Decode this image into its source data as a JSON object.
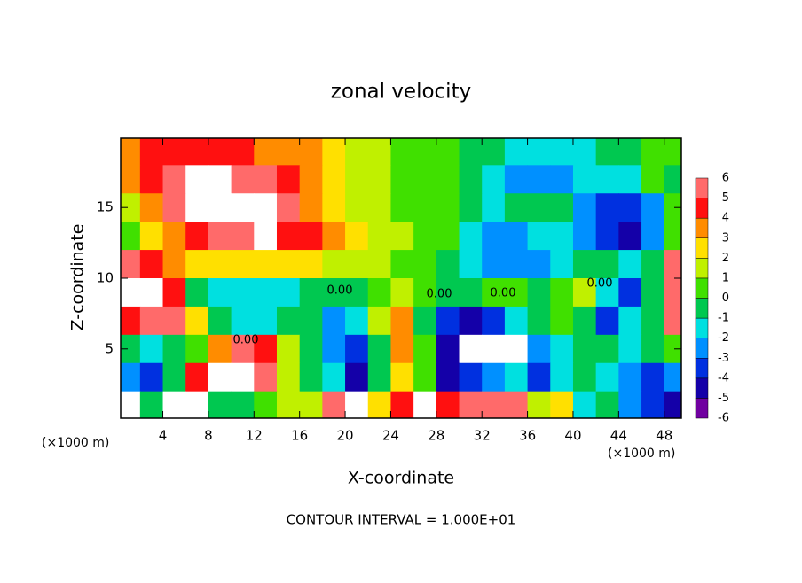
{
  "chart_data": {
    "type": "heatmap",
    "title": "zonal velocity",
    "x_label": "X-coordinate",
    "y_label": "Z-coordinate",
    "x_unit": "(×1000 m)",
    "y_unit": "(×1000 m)",
    "footer": "CONTOUR INTERVAL = 1.000E+01",
    "contour_labels": [
      "0.00",
      "0.00",
      "0.00",
      "0.00",
      "0.00"
    ],
    "xlim": [
      0.3,
      49.5
    ],
    "ylim": [
      0.1,
      19.9
    ],
    "xticks": [
      4,
      8,
      12,
      16,
      20,
      24,
      28,
      32,
      36,
      40,
      44,
      48
    ],
    "yticks": [
      5,
      10,
      15
    ],
    "x": [
      1,
      3,
      5,
      7,
      9,
      11,
      13,
      15,
      17,
      19,
      21,
      23,
      25,
      27,
      29,
      31,
      33,
      35,
      37,
      39,
      41,
      43,
      45,
      47,
      49
    ],
    "y": [
      19,
      17,
      15,
      13,
      11,
      9,
      7,
      5,
      3,
      1
    ],
    "values": [
      [
        3,
        4.5,
        4.5,
        4.5,
        4.5,
        4,
        3.5,
        3,
        3,
        2,
        1,
        1,
        0.5,
        0.5,
        0.5,
        -0.5,
        -1,
        -2,
        -2,
        -2,
        -1.5,
        -1,
        -0.5,
        0.5,
        0.5
      ],
      [
        3,
        4,
        6,
        7,
        7,
        6,
        5,
        4,
        3,
        2,
        1.5,
        1,
        0.5,
        0.5,
        0.5,
        -1,
        -2,
        -3,
        -3,
        -2.5,
        -2,
        -2,
        -1.5,
        0.5,
        -0.5
      ],
      [
        1,
        3,
        5,
        7,
        7,
        7,
        7,
        5,
        3.5,
        2.5,
        1.5,
        1,
        0.5,
        0.5,
        0.5,
        -0.5,
        -2,
        -1,
        -0.5,
        -1,
        -2.5,
        -3.5,
        -4,
        -3,
        0.5
      ],
      [
        0.5,
        2,
        3,
        4,
        5,
        6,
        7,
        4.5,
        4,
        3,
        2,
        1.5,
        1,
        0.5,
        0.5,
        -2,
        -3,
        -3,
        -2,
        -2,
        -3,
        -4,
        -4.5,
        -3,
        0.5
      ],
      [
        5,
        4,
        3,
        2.5,
        2,
        2,
        2,
        2.5,
        2,
        1.5,
        1,
        1,
        0.5,
        0.3,
        -0.5,
        -2,
        -2.5,
        -3,
        -2.5,
        -2,
        -1,
        -1,
        -1.5,
        -1,
        5
      ],
      [
        7,
        7,
        4,
        -0.5,
        -1.5,
        -2,
        -2,
        -1.5,
        -1,
        -1,
        -0.5,
        0.5,
        1,
        0.5,
        -0.5,
        -1,
        0.5,
        0.5,
        -0.5,
        0.5,
        1,
        -1.5,
        -4,
        -1,
        5
      ],
      [
        4,
        6,
        5,
        2,
        -0.5,
        -2,
        -1.5,
        -1,
        -0.5,
        -3,
        -2,
        1,
        3,
        -1,
        -4,
        -5,
        -4,
        -2,
        -1,
        0.5,
        -1,
        -4,
        -2,
        -1,
        6
      ],
      [
        -1,
        -2,
        -0.5,
        0.5,
        3,
        5,
        4,
        1,
        -1,
        -3,
        -4,
        -1,
        3,
        0,
        -5,
        7,
        7,
        7,
        -3,
        -2,
        -1,
        -0.5,
        -2,
        -1,
        0
      ],
      [
        -3,
        -4,
        -1,
        4,
        7,
        7,
        5,
        1,
        -0.5,
        -2,
        -5,
        -1,
        2,
        0.5,
        -5,
        -4,
        -3,
        -2,
        -4,
        -2,
        -0.5,
        -1.5,
        -3,
        -4,
        -3
      ],
      [
        7,
        -1,
        7,
        7,
        -0.5,
        -1,
        0.5,
        1,
        1,
        5,
        7,
        2,
        4,
        7,
        4,
        5,
        6,
        5,
        1,
        2,
        -2,
        -1,
        -3,
        -4,
        -5
      ]
    ],
    "colorbar_ticks": [
      6,
      5,
      4,
      3,
      2,
      1,
      0,
      -1,
      -2,
      -3,
      -4,
      -5,
      -6
    ],
    "colors": [
      "#7000a0",
      "#1400a8",
      "#0030e0",
      "#0090ff",
      "#00e0e0",
      "#00c850",
      "#40e000",
      "#c0f000",
      "#ffe000",
      "#ff8c00",
      "#ff1010",
      "#ff6a6a"
    ],
    "out_of_range_color": "#ffffff"
  }
}
